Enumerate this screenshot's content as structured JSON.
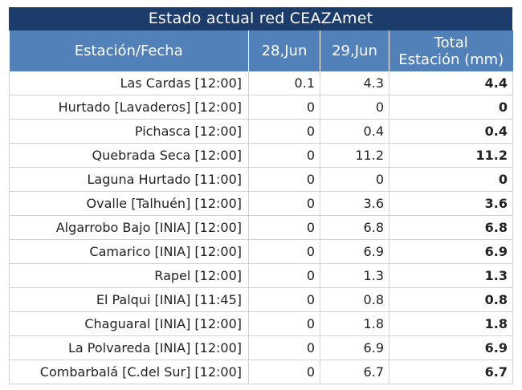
{
  "title": "Estado actual red CEAZAmet",
  "headers": {
    "station": "Estación/Fecha",
    "date1": "28,Jun",
    "date2": "29,Jun",
    "total_line1": "Total",
    "total_line2": "Estación (mm)"
  },
  "rows": [
    {
      "station": "Las Cardas [12:00]",
      "d1": "0.1",
      "d2": "4.3",
      "total": "4.4"
    },
    {
      "station": "Hurtado [Lavaderos] [12:00]",
      "d1": "0",
      "d2": "0",
      "total": "0"
    },
    {
      "station": "Pichasca [12:00]",
      "d1": "0",
      "d2": "0.4",
      "total": "0.4"
    },
    {
      "station": "Quebrada Seca [12:00]",
      "d1": "0",
      "d2": "11.2",
      "total": "11.2"
    },
    {
      "station": "Laguna Hurtado [11:00]",
      "d1": "0",
      "d2": "0",
      "total": "0"
    },
    {
      "station": "Ovalle [Talhuén] [12:00]",
      "d1": "0",
      "d2": "3.6",
      "total": "3.6"
    },
    {
      "station": "Algarrobo Bajo [INIA] [12:00]",
      "d1": "0",
      "d2": "6.8",
      "total": "6.8"
    },
    {
      "station": "Camarico [INIA] [12:00]",
      "d1": "0",
      "d2": "6.9",
      "total": "6.9"
    },
    {
      "station": "Rapel [12:00]",
      "d1": "0",
      "d2": "1.3",
      "total": "1.3"
    },
    {
      "station": "El Palqui [INIA] [11:45]",
      "d1": "0",
      "d2": "0.8",
      "total": "0.8"
    },
    {
      "station": "Chaguaral [INIA] [12:00]",
      "d1": "0",
      "d2": "1.8",
      "total": "1.8"
    },
    {
      "station": "La Polvareda [INIA] [12:00]",
      "d1": "0",
      "d2": "6.9",
      "total": "6.9"
    },
    {
      "station": "Combarbalá [C.del Sur] [12:00]",
      "d1": "0",
      "d2": "6.7",
      "total": "6.7"
    }
  ]
}
